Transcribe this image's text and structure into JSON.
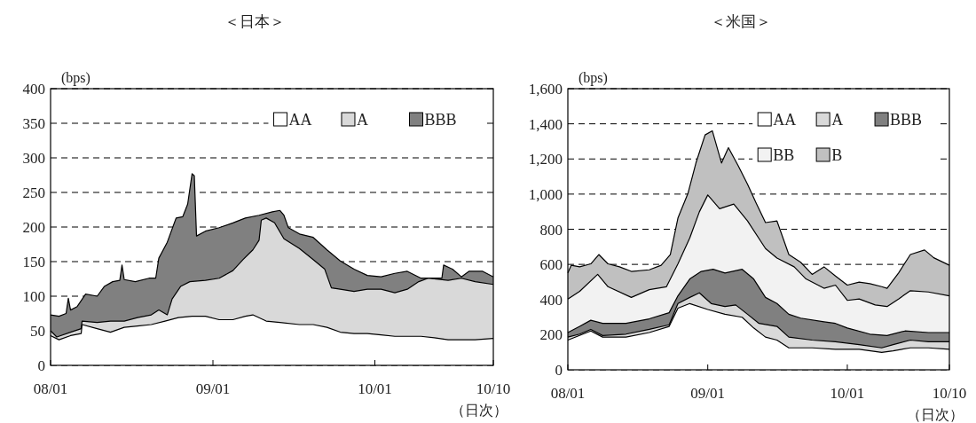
{
  "chart_data": [
    {
      "type": "area",
      "title": "＜日本＞",
      "ylabel": "(bps)",
      "annotations": [
        "（日次）"
      ],
      "xlim": [
        "2008-01-01",
        "2010-09-25"
      ],
      "xticks": [
        {
          "value": "2008-01-01",
          "label": "08/01"
        },
        {
          "value": "2009-01-01",
          "label": "09/01"
        },
        {
          "value": "2010-01-01",
          "label": "10/01"
        },
        {
          "value": "2010-09-25",
          "label": "10/10"
        }
      ],
      "ylim": [
        0,
        400
      ],
      "yticks": [
        0,
        50,
        100,
        150,
        200,
        250,
        300,
        350,
        400
      ],
      "grid": "y",
      "legend": "top right",
      "series": [
        {
          "name": "AA",
          "color": "#ffffff",
          "x": [
            "2008-01-01",
            "2008-01-20",
            "2008-02-15",
            "2008-03-10",
            "2008-03-12",
            "2008-04-15",
            "2008-05-15",
            "2008-06-15",
            "2008-07-15",
            "2008-08-15",
            "2008-09-15",
            "2008-10-15",
            "2008-11-15",
            "2008-12-15",
            "2009-01-15",
            "2009-02-15",
            "2009-03-15",
            "2009-04-01",
            "2009-05-01",
            "2009-06-01",
            "2009-07-15",
            "2009-08-15",
            "2009-09-15",
            "2009-10-15",
            "2009-11-15",
            "2009-12-15",
            "2010-01-15",
            "2010-02-15",
            "2010-03-15",
            "2010-04-15",
            "2010-05-15",
            "2010-06-15",
            "2010-07-15",
            "2010-08-15",
            "2010-09-25"
          ],
          "values": [
            43,
            37,
            43,
            46,
            59,
            53,
            48,
            55,
            57,
            59,
            64,
            69,
            71,
            71,
            66,
            66,
            71,
            73,
            64,
            62,
            59,
            59,
            55,
            48,
            46,
            46,
            44,
            42,
            42,
            42,
            40,
            37,
            37,
            37,
            39
          ]
        },
        {
          "name": "A",
          "color": "#d9d9d9",
          "x": [
            "2008-01-01",
            "2008-01-15",
            "2008-02-15",
            "2008-03-10",
            "2008-03-12",
            "2008-04-15",
            "2008-05-15",
            "2008-06-15",
            "2008-07-15",
            "2008-08-15",
            "2008-09-01",
            "2008-09-20",
            "2008-10-01",
            "2008-10-20",
            "2008-11-10",
            "2008-12-15",
            "2009-01-15",
            "2009-02-15",
            "2009-03-10",
            "2009-04-01",
            "2009-04-15",
            "2009-04-20",
            "2009-05-01",
            "2009-05-20",
            "2009-06-10",
            "2009-07-15",
            "2009-08-15",
            "2009-09-10",
            "2009-09-25",
            "2009-10-15",
            "2009-11-15",
            "2009-12-15",
            "2010-01-15",
            "2010-02-15",
            "2010-03-15",
            "2010-04-10",
            "2010-05-01",
            "2010-06-15",
            "2010-07-15",
            "2010-08-15",
            "2010-09-25"
          ],
          "values": [
            50,
            41,
            48,
            53,
            64,
            62,
            64,
            64,
            69,
            73,
            80,
            73,
            96,
            114,
            121,
            123,
            126,
            137,
            153,
            167,
            181,
            210,
            213,
            206,
            183,
            169,
            153,
            139,
            112,
            110,
            107,
            110,
            110,
            105,
            110,
            121,
            126,
            123,
            126,
            121,
            117
          ]
        },
        {
          "name": "BBB",
          "color": "#808080",
          "x": [
            "2008-01-01",
            "2008-01-20",
            "2008-02-05",
            "2008-02-10",
            "2008-02-15",
            "2008-03-01",
            "2008-03-20",
            "2008-04-15",
            "2008-05-01",
            "2008-05-20",
            "2008-06-05",
            "2008-06-10",
            "2008-06-15",
            "2008-07-10",
            "2008-08-10",
            "2008-08-25",
            "2008-09-01",
            "2008-09-20",
            "2008-10-10",
            "2008-10-25",
            "2008-11-05",
            "2008-11-15",
            "2008-11-20",
            "2008-11-25",
            "2008-12-15",
            "2009-01-15",
            "2009-02-15",
            "2009-03-15",
            "2009-04-15",
            "2009-05-15",
            "2009-06-01",
            "2009-06-10",
            "2009-06-20",
            "2009-07-15",
            "2009-08-15",
            "2009-09-15",
            "2009-10-15",
            "2009-11-15",
            "2009-12-15",
            "2010-01-15",
            "2010-02-15",
            "2010-03-15",
            "2010-04-15",
            "2010-05-15",
            "2010-06-01",
            "2010-06-05",
            "2010-06-25",
            "2010-07-15",
            "2010-08-01",
            "2010-09-01",
            "2010-09-25"
          ],
          "values": [
            73,
            71,
            75,
            97,
            80,
            85,
            103,
            100,
            114,
            121,
            123,
            145,
            124,
            121,
            126,
            126,
            155,
            178,
            213,
            215,
            233,
            277,
            274,
            187,
            194,
            199,
            206,
            213,
            217,
            222,
            224,
            217,
            199,
            190,
            185,
            167,
            151,
            139,
            130,
            128,
            133,
            136,
            126,
            126,
            126,
            145,
            139,
            128,
            136,
            136,
            128
          ]
        }
      ]
    },
    {
      "type": "area",
      "title": "＜米国＞",
      "ylabel": "(bps)",
      "annotations": [
        "（日次）"
      ],
      "xlim": [
        "2008-01-01",
        "2010-09-25"
      ],
      "xticks": [
        {
          "value": "2008-01-01",
          "label": "08/01"
        },
        {
          "value": "2009-01-01",
          "label": "09/01"
        },
        {
          "value": "2010-01-01",
          "label": "10/01"
        },
        {
          "value": "2010-09-25",
          "label": "10/10"
        }
      ],
      "ylim": [
        0,
        1600
      ],
      "yticks": [
        0,
        200,
        400,
        600,
        800,
        {
          "value": 1000,
          "label": "1,000"
        },
        {
          "value": 1200,
          "label": "1,200"
        },
        {
          "value": 1400,
          "label": "1,400"
        },
        {
          "value": 1600,
          "label": "1,600"
        }
      ],
      "grid": "y",
      "legend": "top right",
      "series": [
        {
          "name": "AA",
          "color": "#ffffff",
          "x": [
            "2008-01-01",
            "2008-03-01",
            "2008-04-01",
            "2008-06-01",
            "2008-08-01",
            "2008-09-22",
            "2008-10-15",
            "2008-11-15",
            "2009-01-01",
            "2009-02-15",
            "2009-04-01",
            "2009-05-01",
            "2009-06-01",
            "2009-07-01",
            "2009-08-01",
            "2009-10-01",
            "2009-12-01",
            "2010-02-01",
            "2010-04-01",
            "2010-05-01",
            "2010-06-15",
            "2010-08-01",
            "2010-09-25"
          ],
          "values": [
            169,
            221,
            186,
            186,
            212,
            247,
            351,
            377,
            343,
            316,
            299,
            238,
            186,
            169,
            125,
            125,
            117,
            117,
            99,
            108,
            125,
            125,
            117
          ]
        },
        {
          "name": "A",
          "color": "#d9d9d9",
          "x": [
            "2008-01-01",
            "2008-02-01",
            "2008-03-01",
            "2008-04-01",
            "2008-06-01",
            "2008-08-01",
            "2008-09-22",
            "2008-10-15",
            "2008-11-15",
            "2008-12-10",
            "2009-01-10",
            "2009-02-15",
            "2009-03-15",
            "2009-04-15",
            "2009-05-15",
            "2009-07-01",
            "2009-08-01",
            "2009-10-01",
            "2009-12-01",
            "2010-02-01",
            "2010-04-01",
            "2010-05-01",
            "2010-06-15",
            "2010-08-01",
            "2010-09-25"
          ],
          "values": [
            186,
            203,
            230,
            195,
            203,
            230,
            256,
            377,
            412,
            438,
            377,
            360,
            369,
            316,
            264,
            247,
            186,
            169,
            160,
            143,
            125,
            143,
            169,
            160,
            160
          ]
        },
        {
          "name": "BBB",
          "color": "#808080",
          "x": [
            "2008-01-01",
            "2008-02-01",
            "2008-03-01",
            "2008-04-01",
            "2008-06-01",
            "2008-08-01",
            "2008-09-22",
            "2008-10-15",
            "2008-11-15",
            "2008-12-15",
            "2009-01-15",
            "2009-02-15",
            "2009-04-01",
            "2009-05-01",
            "2009-06-01",
            "2009-07-01",
            "2009-08-01",
            "2009-09-01",
            "2009-11-01",
            "2009-12-01",
            "2010-01-01",
            "2010-03-01",
            "2010-04-15",
            "2010-06-01",
            "2010-08-01",
            "2010-09-25"
          ],
          "values": [
            212,
            247,
            282,
            264,
            264,
            290,
            325,
            421,
            517,
            560,
            572,
            551,
            572,
            517,
            412,
            377,
            316,
            294,
            273,
            264,
            238,
            203,
            195,
            221,
            212,
            212
          ]
        },
        {
          "name": "BB",
          "color": "#f2f2f2",
          "x": [
            "2008-01-01",
            "2008-02-01",
            "2008-03-19",
            "2008-04-15",
            "2008-06-15",
            "2008-08-01",
            "2008-09-15",
            "2008-10-15",
            "2008-11-15",
            "2008-12-10",
            "2009-01-01",
            "2009-02-01",
            "2009-03-10",
            "2009-04-15",
            "2009-06-01",
            "2009-07-01",
            "2009-08-15",
            "2009-09-15",
            "2009-11-01",
            "2009-12-01",
            "2010-01-01",
            "2010-02-01",
            "2010-03-15",
            "2010-04-15",
            "2010-05-15",
            "2010-06-15",
            "2010-08-01",
            "2010-09-25"
          ],
          "values": [
            403,
            447,
            543,
            473,
            412,
            456,
            473,
            603,
            751,
            899,
            995,
            917,
            943,
            847,
            690,
            636,
            586,
            517,
            464,
            482,
            395,
            403,
            369,
            360,
            403,
            450,
            443,
            421
          ]
        },
        {
          "name": "B",
          "color": "#c0c0c0",
          "x": [
            "2008-01-01",
            "2008-01-10",
            "2008-02-01",
            "2008-03-01",
            "2008-03-22",
            "2008-04-15",
            "2008-05-15",
            "2008-06-15",
            "2008-08-01",
            "2008-09-01",
            "2008-09-25",
            "2008-10-15",
            "2008-11-10",
            "2008-12-01",
            "2008-12-25",
            "2009-01-13",
            "2009-02-06",
            "2009-02-24",
            "2009-03-22",
            "2009-04-15",
            "2009-05-07",
            "2009-06-01",
            "2009-07-01",
            "2009-08-01",
            "2009-09-01",
            "2009-10-01",
            "2009-11-01",
            "2009-12-01",
            "2010-01-01",
            "2010-02-01",
            "2010-03-01",
            "2010-04-01",
            "2010-04-15",
            "2010-05-15",
            "2010-06-15",
            "2010-07-22",
            "2010-08-15",
            "2010-09-25"
          ],
          "values": [
            551,
            595,
            586,
            603,
            656,
            603,
            586,
            560,
            569,
            595,
            656,
            864,
            1003,
            1177,
            1337,
            1360,
            1177,
            1264,
            1160,
            1056,
            951,
            838,
            847,
            656,
            612,
            543,
            586,
            534,
            482,
            499,
            490,
            473,
            464,
            551,
            656,
            682,
            638,
            595
          ]
        }
      ]
    }
  ]
}
